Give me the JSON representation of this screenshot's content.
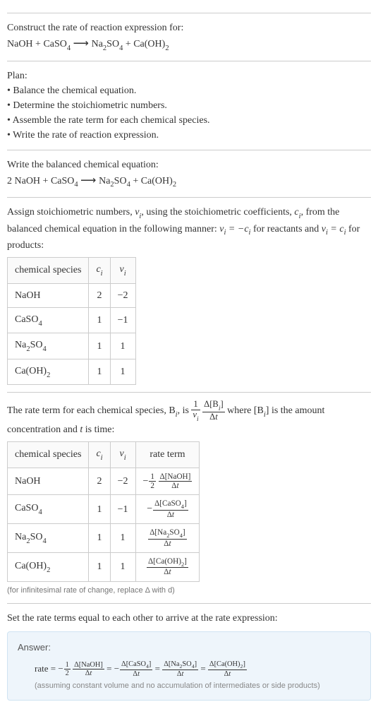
{
  "intro": {
    "prompt": "Construct the rate of reaction expression for:",
    "equation_left": "NaOH + CaSO",
    "equation_right": "Na",
    "so4": "SO",
    "caoh": "Ca(OH)"
  },
  "plan": {
    "heading": "Plan:",
    "items": [
      "Balance the chemical equation.",
      "Determine the stoichiometric numbers.",
      "Assemble the rate term for each chemical species.",
      "Write the rate of reaction expression."
    ]
  },
  "balanced": {
    "heading": "Write the balanced chemical equation:"
  },
  "stoich": {
    "text1": "Assign stoichiometric numbers, ",
    "nu_i": "ν",
    "text2": ", using the stoichiometric coefficients, ",
    "c_i": "c",
    "text3": ", from the balanced chemical equation in the following manner: ",
    "eq_reactants": " for reactants and ",
    "eq_products": " for products:",
    "table": {
      "headers": [
        "chemical species",
        "cᵢ",
        "νᵢ"
      ],
      "rows": [
        {
          "species": "NaOH",
          "c": "2",
          "nu": "−2"
        },
        {
          "species": "CaSO₄",
          "c": "1",
          "nu": "−1"
        },
        {
          "species": "Na₂SO₄",
          "c": "1",
          "nu": "1"
        },
        {
          "species": "Ca(OH)₂",
          "c": "1",
          "nu": "1"
        }
      ]
    }
  },
  "rate_term": {
    "text1": "The rate term for each chemical species, B",
    "text2": ", is ",
    "text3": " where [B",
    "text4": "] is the amount concentration and ",
    "t": "t",
    "text5": " is time:",
    "table": {
      "headers": [
        "chemical species",
        "cᵢ",
        "νᵢ",
        "rate term"
      ],
      "rows": [
        {
          "species": "NaOH",
          "c": "2",
          "nu": "−2"
        },
        {
          "species": "CaSO₄",
          "c": "1",
          "nu": "−1"
        },
        {
          "species": "Na₂SO₄",
          "c": "1",
          "nu": "1"
        },
        {
          "species": "Ca(OH)₂",
          "c": "1",
          "nu": "1"
        }
      ]
    },
    "note": "(for infinitesimal rate of change, replace Δ with d)"
  },
  "answer": {
    "heading": "Set the rate terms equal to each other to arrive at the rate expression:",
    "label": "Answer:",
    "note": "(assuming constant volume and no accumulation of intermediates or side products)"
  }
}
